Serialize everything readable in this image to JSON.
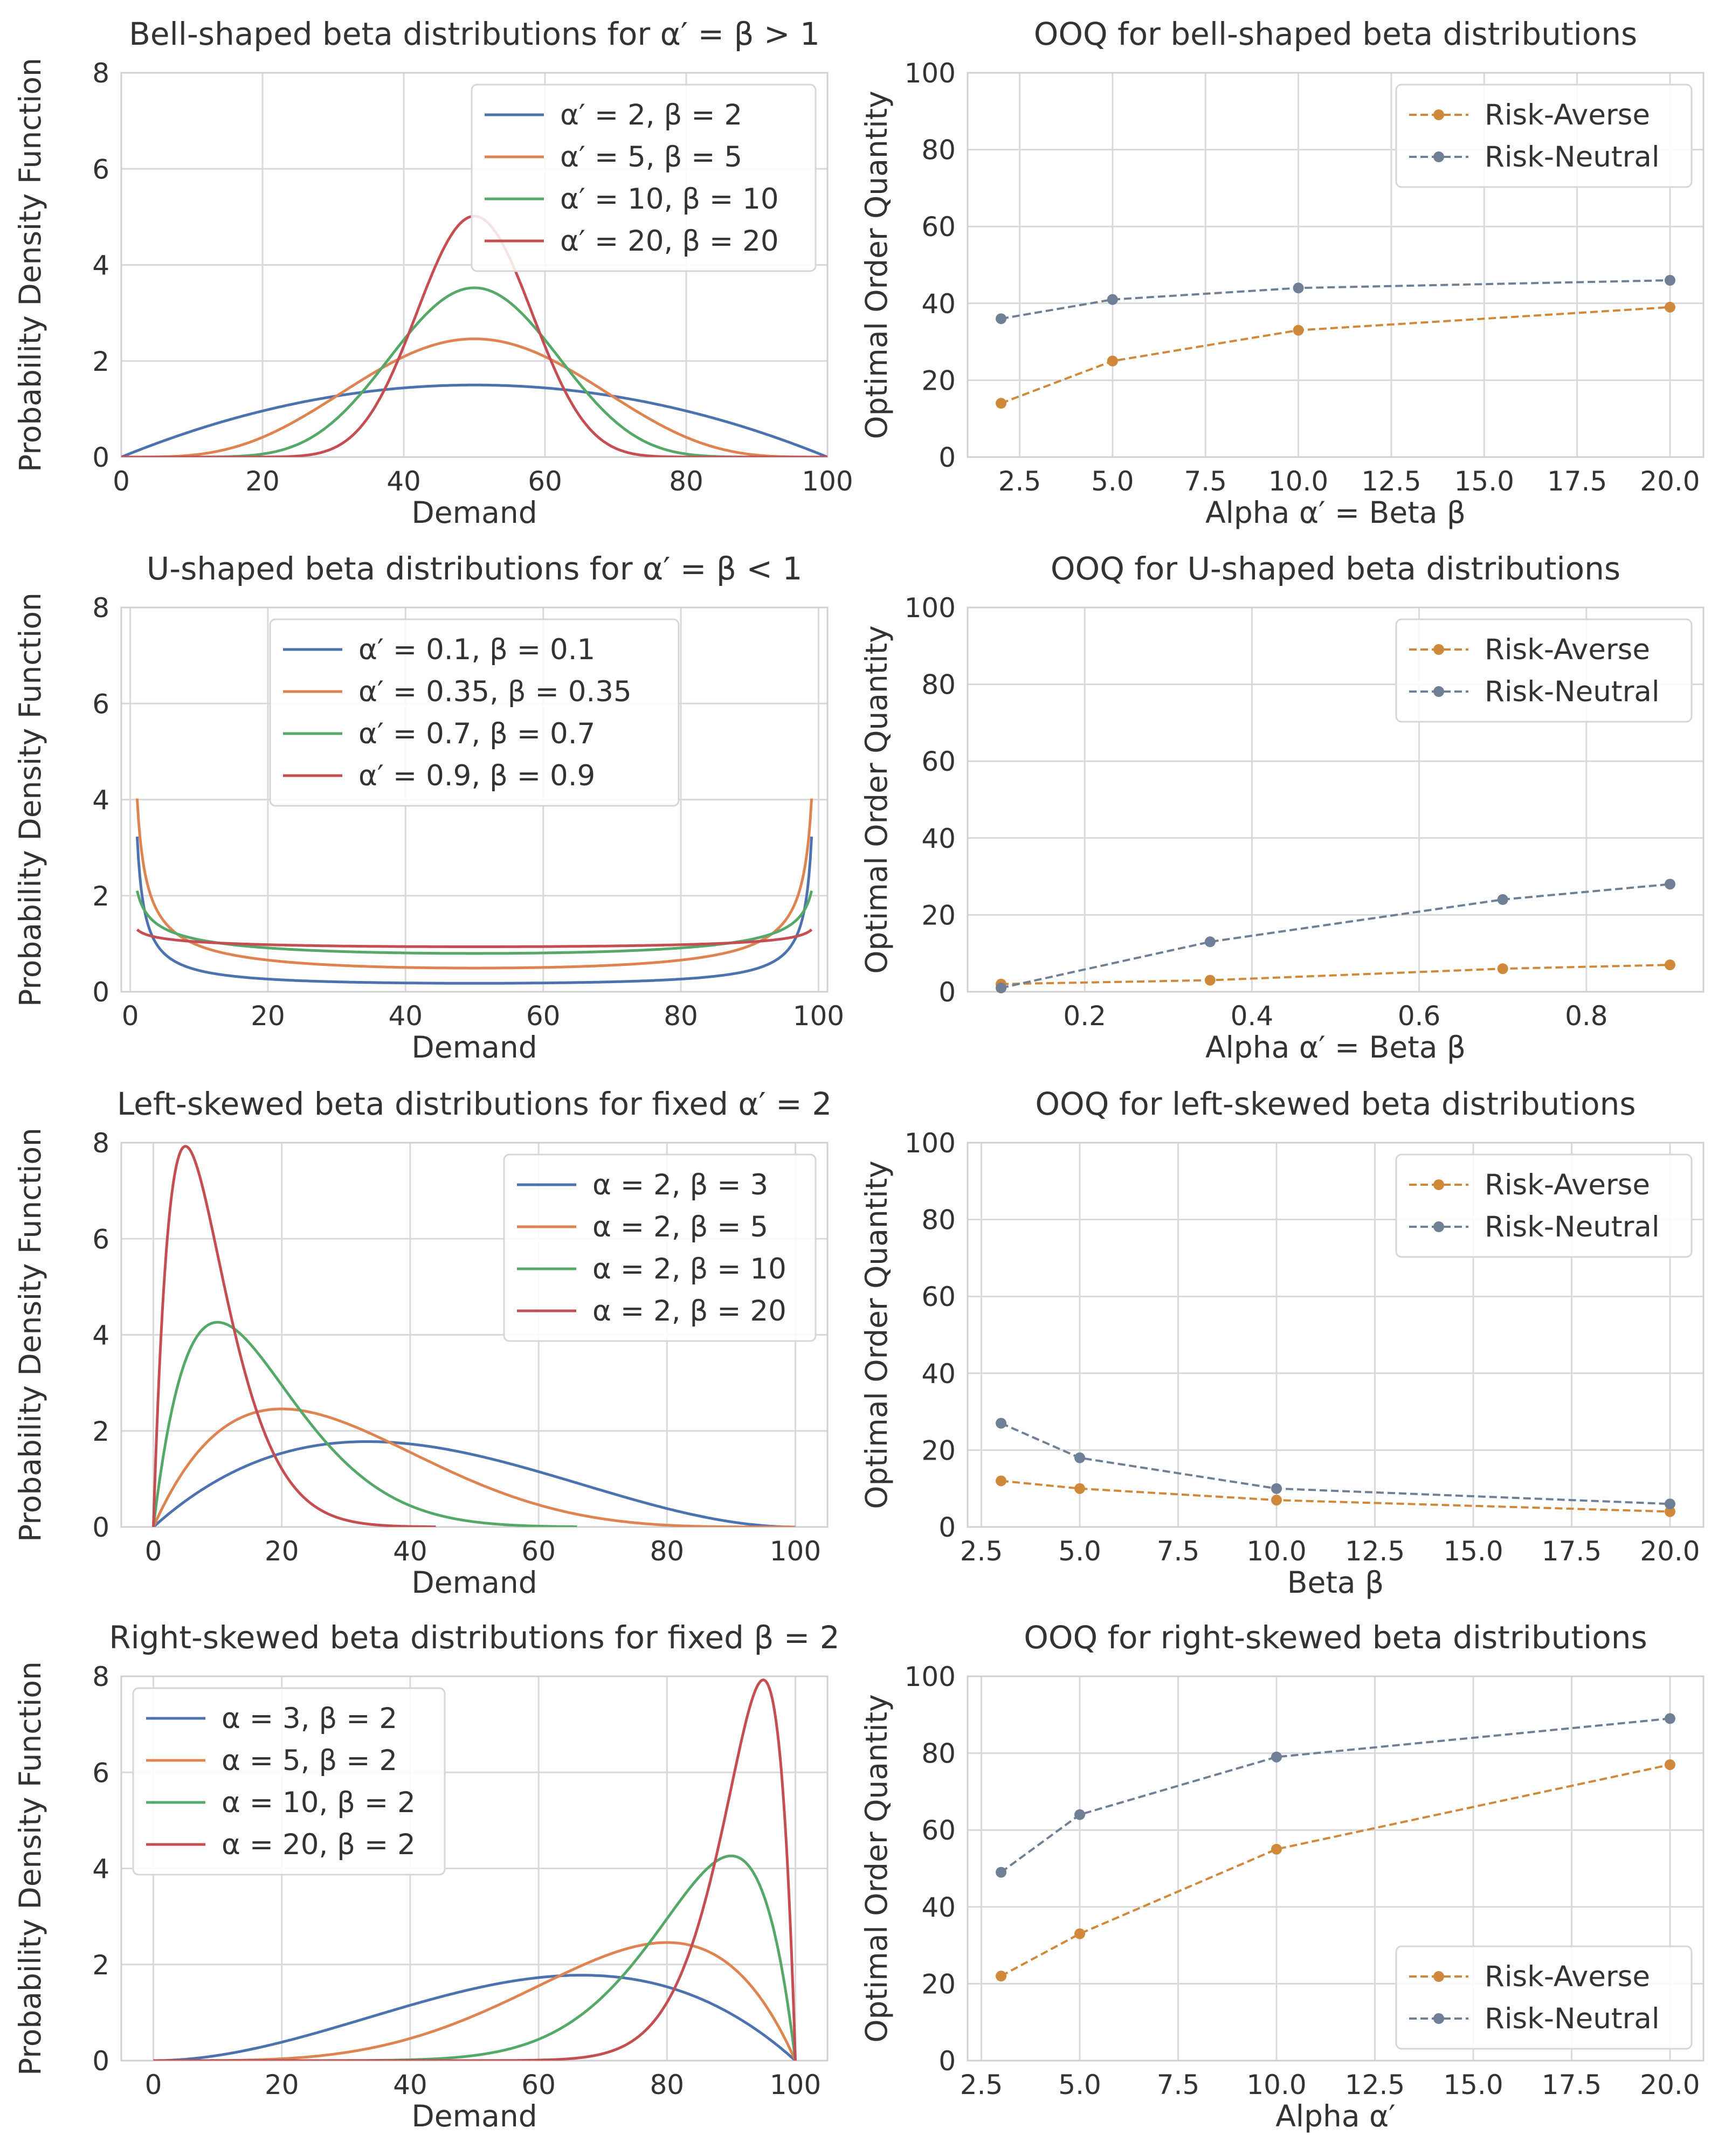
{
  "colors": {
    "blue": "#4c72b0",
    "orange": "#dd8452",
    "green": "#55a868",
    "red": "#c44e52",
    "risk_averse": "#d0883a",
    "risk_neutral": "#6f7f96"
  },
  "chart_data": [
    {
      "type": "line",
      "title": "Bell-shaped beta distributions for α′ = β > 1",
      "xlabel": "Demand",
      "ylabel": "Probability Density Function",
      "xlim": [
        0,
        100
      ],
      "ylim": [
        0,
        8
      ],
      "xticks": [
        0,
        20,
        40,
        60,
        80,
        100
      ],
      "yticks": [
        0,
        2,
        4,
        6,
        8
      ],
      "xtick_labels": [
        "0",
        "20",
        "40",
        "60",
        "80",
        "100"
      ],
      "ytick_labels": [
        "0",
        "2",
        "4",
        "6",
        "8"
      ],
      "legend_position": "top-right",
      "series": [
        {
          "name": "α′ = 2, β = 2",
          "color": "blue",
          "a": 2,
          "b": 2,
          "domain": [
            0,
            100
          ]
        },
        {
          "name": "α′ = 5, β = 5",
          "color": "orange",
          "a": 5,
          "b": 5,
          "domain": [
            0,
            100
          ]
        },
        {
          "name": "α′ = 10, β = 10",
          "color": "green",
          "a": 10,
          "b": 10,
          "domain": [
            0,
            100
          ]
        },
        {
          "name": "α′ = 20, β = 20",
          "color": "red",
          "a": 20,
          "b": 20,
          "domain": [
            0,
            100
          ]
        }
      ]
    },
    {
      "type": "line",
      "title": "OOQ for bell-shaped beta distributions",
      "xlabel": "Alpha α′ = Beta β",
      "ylabel": "Optimal Order Quantity",
      "xlim": [
        1.1,
        20.9
      ],
      "ylim": [
        0,
        100
      ],
      "xticks": [
        2.5,
        5.0,
        7.5,
        10.0,
        12.5,
        15.0,
        17.5,
        20.0
      ],
      "yticks": [
        0,
        20,
        40,
        60,
        80,
        100
      ],
      "xtick_labels": [
        "2.5",
        "5.0",
        "7.5",
        "10.0",
        "12.5",
        "15.0",
        "17.5",
        "20.0"
      ],
      "ytick_labels": [
        "0",
        "20",
        "40",
        "60",
        "80",
        "100"
      ],
      "legend_position": "top-right",
      "series": [
        {
          "name": "Risk-Averse",
          "color": "risk_averse",
          "x": [
            2,
            5,
            10,
            20
          ],
          "y": [
            14,
            25,
            33,
            39
          ]
        },
        {
          "name": "Risk-Neutral",
          "color": "risk_neutral",
          "x": [
            2,
            5,
            10,
            20
          ],
          "y": [
            36,
            41,
            44,
            46
          ]
        }
      ]
    },
    {
      "type": "line",
      "title": "U-shaped beta distributions for α′ = β < 1",
      "xlabel": "Demand",
      "ylabel": "Probability Density Function",
      "xlim": [
        -1.3,
        101.3
      ],
      "ylim": [
        0,
        8
      ],
      "xticks": [
        0,
        20,
        40,
        60,
        80,
        100
      ],
      "yticks": [
        0,
        2,
        4,
        6,
        8
      ],
      "xtick_labels": [
        "0",
        "20",
        "40",
        "60",
        "80",
        "100"
      ],
      "ytick_labels": [
        "0",
        "2",
        "4",
        "6",
        "8"
      ],
      "legend_position": "top-center",
      "series": [
        {
          "name": "α′ = 0.1, β = 0.1",
          "color": "blue",
          "a": 0.1,
          "b": 0.1,
          "domain": [
            1,
            99
          ]
        },
        {
          "name": "α′ = 0.35, β = 0.35",
          "color": "orange",
          "a": 0.35,
          "b": 0.35,
          "domain": [
            1,
            99
          ]
        },
        {
          "name": "α′ = 0.7, β = 0.7",
          "color": "green",
          "a": 0.7,
          "b": 0.7,
          "domain": [
            1,
            99
          ]
        },
        {
          "name": "α′ = 0.9, β = 0.9",
          "color": "red",
          "a": 0.9,
          "b": 0.9,
          "domain": [
            1,
            99
          ]
        }
      ]
    },
    {
      "type": "line",
      "title": "OOQ for U-shaped beta distributions",
      "xlabel": "Alpha α′ = Beta β",
      "ylabel": "Optimal Order Quantity",
      "xlim": [
        0.06,
        0.94
      ],
      "ylim": [
        0,
        100
      ],
      "xticks": [
        0.2,
        0.4,
        0.6,
        0.8
      ],
      "yticks": [
        0,
        20,
        40,
        60,
        80,
        100
      ],
      "xtick_labels": [
        "0.2",
        "0.4",
        "0.6",
        "0.8"
      ],
      "ytick_labels": [
        "0",
        "20",
        "40",
        "60",
        "80",
        "100"
      ],
      "legend_position": "top-right",
      "series": [
        {
          "name": "Risk-Averse",
          "color": "risk_averse",
          "x": [
            0.1,
            0.35,
            0.7,
            0.9
          ],
          "y": [
            2,
            3,
            6,
            7
          ]
        },
        {
          "name": "Risk-Neutral",
          "color": "risk_neutral",
          "x": [
            0.1,
            0.35,
            0.7,
            0.9
          ],
          "y": [
            1,
            13,
            24,
            28
          ]
        }
      ]
    },
    {
      "type": "line",
      "title": "Left-skewed beta distributions for fixed α′ = 2",
      "xlabel": "Demand",
      "ylabel": "Probability Density Function",
      "xlim": [
        -5,
        105
      ],
      "ylim": [
        0,
        8
      ],
      "xticks": [
        0,
        20,
        40,
        60,
        80,
        100
      ],
      "yticks": [
        0,
        2,
        4,
        6,
        8
      ],
      "xtick_labels": [
        "0",
        "20",
        "40",
        "60",
        "80",
        "100"
      ],
      "ytick_labels": [
        "0",
        "2",
        "4",
        "6",
        "8"
      ],
      "legend_position": "top-right",
      "series": [
        {
          "name": "α = 2, β = 3",
          "color": "blue",
          "a": 2,
          "b": 3,
          "domain": [
            0,
            100
          ]
        },
        {
          "name": "α = 2, β = 5",
          "color": "orange",
          "a": 2,
          "b": 5,
          "domain": [
            0,
            100
          ]
        },
        {
          "name": "α = 2, β = 10",
          "color": "green",
          "a": 2,
          "b": 10,
          "domain": [
            0,
            66
          ]
        },
        {
          "name": "α = 2, β = 20",
          "color": "red",
          "a": 2,
          "b": 20,
          "domain": [
            0,
            44
          ]
        }
      ]
    },
    {
      "type": "line",
      "title": "OOQ for left-skewed beta distributions",
      "xlabel": "Beta β",
      "ylabel": "Optimal Order Quantity",
      "xlim": [
        2.15,
        20.85
      ],
      "ylim": [
        0,
        100
      ],
      "xticks": [
        2.5,
        5.0,
        7.5,
        10.0,
        12.5,
        15.0,
        17.5,
        20.0
      ],
      "yticks": [
        0,
        20,
        40,
        60,
        80,
        100
      ],
      "xtick_labels": [
        "2.5",
        "5.0",
        "7.5",
        "10.0",
        "12.5",
        "15.0",
        "17.5",
        "20.0"
      ],
      "ytick_labels": [
        "0",
        "20",
        "40",
        "60",
        "80",
        "100"
      ],
      "legend_position": "top-right",
      "series": [
        {
          "name": "Risk-Averse",
          "color": "risk_averse",
          "x": [
            3,
            5,
            10,
            20
          ],
          "y": [
            12,
            10,
            7,
            4
          ]
        },
        {
          "name": "Risk-Neutral",
          "color": "risk_neutral",
          "x": [
            3,
            5,
            10,
            20
          ],
          "y": [
            27,
            18,
            10,
            6
          ]
        }
      ]
    },
    {
      "type": "line",
      "title": "Right-skewed beta distributions for fixed β = 2",
      "xlabel": "Demand",
      "ylabel": "Probability Density Function",
      "xlim": [
        -5,
        105
      ],
      "ylim": [
        0,
        8
      ],
      "xticks": [
        0,
        20,
        40,
        60,
        80,
        100
      ],
      "yticks": [
        0,
        2,
        4,
        6,
        8
      ],
      "xtick_labels": [
        "0",
        "20",
        "40",
        "60",
        "80",
        "100"
      ],
      "ytick_labels": [
        "0",
        "2",
        "4",
        "6",
        "8"
      ],
      "legend_position": "top-left",
      "series": [
        {
          "name": "α = 3, β = 2",
          "color": "blue",
          "a": 3,
          "b": 2,
          "domain": [
            0,
            100
          ]
        },
        {
          "name": "α = 5, β = 2",
          "color": "orange",
          "a": 5,
          "b": 2,
          "domain": [
            0,
            100
          ]
        },
        {
          "name": "α = 10, β = 2",
          "color": "green",
          "a": 10,
          "b": 2,
          "domain": [
            0,
            100
          ]
        },
        {
          "name": "α = 20, β = 2",
          "color": "red",
          "a": 20,
          "b": 2,
          "domain": [
            0,
            100
          ]
        }
      ]
    },
    {
      "type": "line",
      "title": "OOQ for right-skewed beta distributions",
      "xlabel": "Alpha α′",
      "ylabel": "Optimal Order Quantity",
      "xlim": [
        2.15,
        20.85
      ],
      "ylim": [
        0,
        100
      ],
      "xticks": [
        2.5,
        5.0,
        7.5,
        10.0,
        12.5,
        15.0,
        17.5,
        20.0
      ],
      "yticks": [
        0,
        20,
        40,
        60,
        80,
        100
      ],
      "xtick_labels": [
        "2.5",
        "5.0",
        "7.5",
        "10.0",
        "12.5",
        "15.0",
        "17.5",
        "20.0"
      ],
      "ytick_labels": [
        "0",
        "20",
        "40",
        "60",
        "80",
        "100"
      ],
      "legend_position": "bottom-right",
      "series": [
        {
          "name": "Risk-Averse",
          "color": "risk_averse",
          "x": [
            3,
            5,
            10,
            20
          ],
          "y": [
            22,
            33,
            55,
            77
          ]
        },
        {
          "name": "Risk-Neutral",
          "color": "risk_neutral",
          "x": [
            3,
            5,
            10,
            20
          ],
          "y": [
            49,
            64,
            79,
            89
          ]
        }
      ]
    }
  ]
}
